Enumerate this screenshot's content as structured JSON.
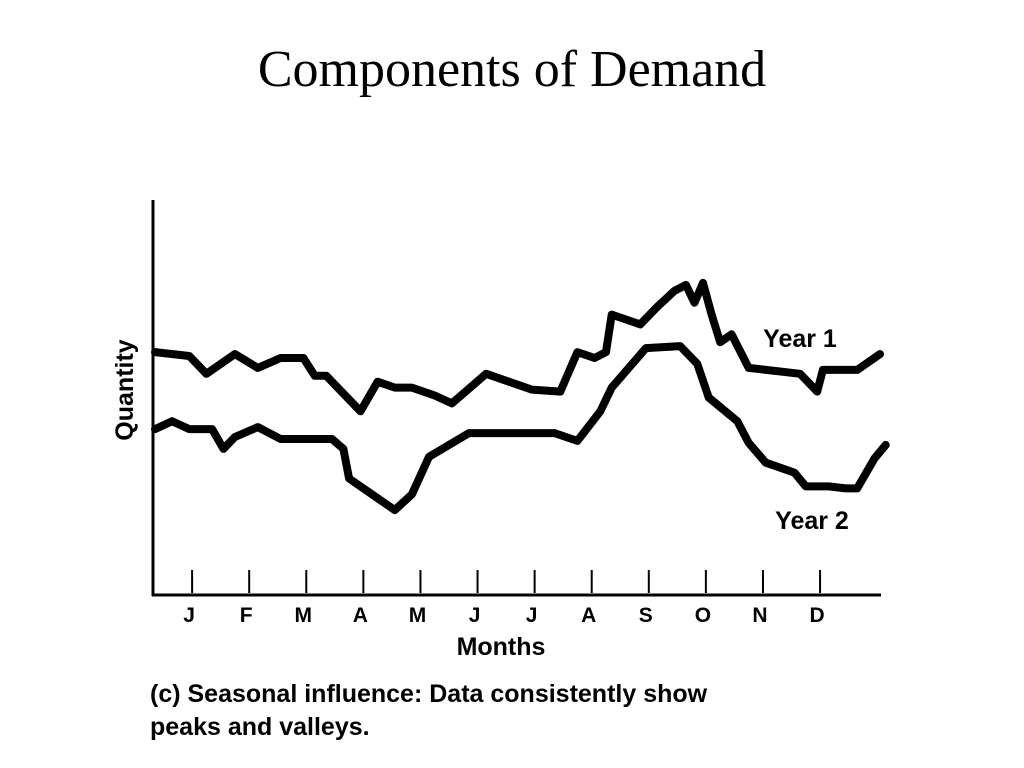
{
  "slide": {
    "title": "Components of Demand",
    "caption_line1": "(c) Seasonal influence: Data consistently show",
    "caption_line2": "peaks and valleys."
  },
  "chart_data": {
    "type": "line",
    "title": "",
    "xlabel": "Months",
    "ylabel": "Quantity",
    "categories": [
      "J",
      "F",
      "M",
      "A",
      "M",
      "J",
      "J",
      "A",
      "S",
      "O",
      "N",
      "D"
    ],
    "x_range": [
      0,
      12.7
    ],
    "y_range": [
      0,
      100
    ],
    "y_ticks_shown": false,
    "grid": false,
    "legend": "labels next to lines",
    "line_color": "#000000",
    "series": [
      {
        "name": "Year 1",
        "points": [
          [
            0.0,
            61.5
          ],
          [
            0.6,
            60.5
          ],
          [
            0.9,
            56.0
          ],
          [
            1.4,
            61.0
          ],
          [
            1.8,
            57.5
          ],
          [
            2.2,
            60.0
          ],
          [
            2.6,
            60.0
          ],
          [
            2.8,
            55.5
          ],
          [
            3.0,
            55.5
          ],
          [
            3.6,
            46.5
          ],
          [
            3.9,
            54.0
          ],
          [
            4.2,
            52.5
          ],
          [
            4.5,
            52.5
          ],
          [
            4.9,
            50.5
          ],
          [
            5.2,
            48.5
          ],
          [
            5.8,
            56.0
          ],
          [
            6.6,
            52.0
          ],
          [
            7.1,
            51.5
          ],
          [
            7.4,
            61.5
          ],
          [
            7.7,
            60.0
          ],
          [
            7.9,
            61.5
          ],
          [
            8.0,
            71.0
          ],
          [
            8.2,
            70.0
          ],
          [
            8.5,
            68.5
          ],
          [
            8.8,
            73.0
          ],
          [
            9.1,
            77.0
          ],
          [
            9.3,
            78.5
          ],
          [
            9.45,
            74.0
          ],
          [
            9.6,
            79.0
          ],
          [
            9.75,
            71.0
          ],
          [
            9.9,
            64.0
          ],
          [
            10.1,
            66.0
          ],
          [
            10.4,
            57.5
          ],
          [
            11.0,
            56.5
          ],
          [
            11.3,
            56.0
          ],
          [
            11.6,
            51.5
          ],
          [
            11.7,
            57.0
          ],
          [
            12.3,
            57.0
          ],
          [
            12.7,
            61.0
          ]
        ],
        "label_position": "upper-right"
      },
      {
        "name": "Year 2",
        "points": [
          [
            0.0,
            42.0
          ],
          [
            0.3,
            44.0
          ],
          [
            0.6,
            42.0
          ],
          [
            1.0,
            42.0
          ],
          [
            1.2,
            37.0
          ],
          [
            1.4,
            40.0
          ],
          [
            1.8,
            42.5
          ],
          [
            2.2,
            39.5
          ],
          [
            3.1,
            39.5
          ],
          [
            3.3,
            37.0
          ],
          [
            3.4,
            29.5
          ],
          [
            4.2,
            21.5
          ],
          [
            4.5,
            25.5
          ],
          [
            4.8,
            35.0
          ],
          [
            5.5,
            41.0
          ],
          [
            7.0,
            41.0
          ],
          [
            7.4,
            39.0
          ],
          [
            7.8,
            46.5
          ],
          [
            8.0,
            52.5
          ],
          [
            8.3,
            57.5
          ],
          [
            8.6,
            62.5
          ],
          [
            9.2,
            63.0
          ],
          [
            9.5,
            58.5
          ],
          [
            9.7,
            50.0
          ],
          [
            10.2,
            44.0
          ],
          [
            10.4,
            38.5
          ],
          [
            10.7,
            33.5
          ],
          [
            11.2,
            31.0
          ],
          [
            11.4,
            27.5
          ],
          [
            11.8,
            27.5
          ],
          [
            12.1,
            27.0
          ],
          [
            12.3,
            27.0
          ],
          [
            12.6,
            34.5
          ],
          [
            12.8,
            38.0
          ]
        ],
        "label_position": "lower-right"
      }
    ]
  }
}
